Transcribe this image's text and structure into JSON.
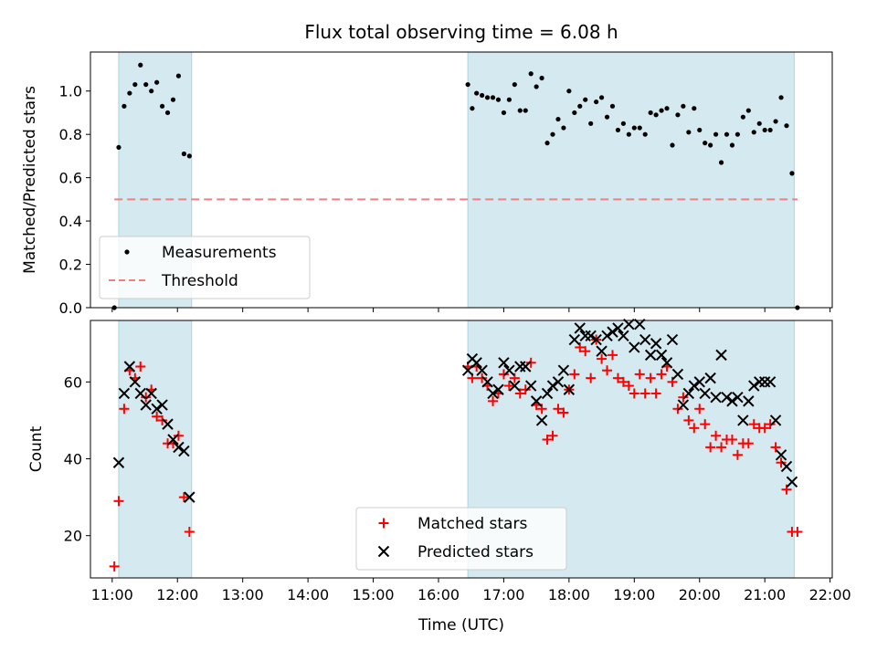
{
  "figure": {
    "title": "Flux total observing time = 6.08 h",
    "xlabel": "Time (UTC)"
  },
  "chart_data": [
    {
      "type": "scatter",
      "panel": "top",
      "ylabel": "Matched/Predicted stars",
      "xlim": [
        "10:40",
        "22:02"
      ],
      "ylim": [
        0,
        1.18
      ],
      "yticks": [
        0.0,
        0.2,
        0.4,
        0.6,
        0.8,
        1.0
      ],
      "ytick_labels": [
        "0.0",
        "0.2",
        "0.4",
        "0.6",
        "0.8",
        "1.0"
      ],
      "xticks": [
        "11:00",
        "12:00",
        "13:00",
        "14:00",
        "15:00",
        "16:00",
        "17:00",
        "18:00",
        "19:00",
        "20:00",
        "21:00",
        "22:00"
      ],
      "shaded_intervals": [
        [
          "11:06",
          "12:13"
        ],
        [
          "16:27",
          "21:27"
        ]
      ],
      "shade_color": "#d4eaf0",
      "threshold": 0.5,
      "threshold_color": "#f08080",
      "legend": {
        "placement": "lower-left",
        "entries": [
          {
            "label": "Measurements",
            "marker": "dot",
            "color": "#000000"
          },
          {
            "label": "Threshold",
            "marker": "dashed-line",
            "color": "#f08080"
          }
        ]
      },
      "series": [
        {
          "name": "Measurements",
          "color": "#000000",
          "points": [
            [
              "11:02",
              0.0
            ],
            [
              "11:06",
              0.74
            ],
            [
              "11:11",
              0.93
            ],
            [
              "11:16",
              0.99
            ],
            [
              "11:21",
              1.03
            ],
            [
              "11:26",
              1.12
            ],
            [
              "11:31",
              1.03
            ],
            [
              "11:36",
              1.0
            ],
            [
              "11:41",
              1.04
            ],
            [
              "11:46",
              0.93
            ],
            [
              "11:51",
              0.9
            ],
            [
              "11:56",
              0.96
            ],
            [
              "12:01",
              1.07
            ],
            [
              "12:06",
              0.71
            ],
            [
              "12:11",
              0.7
            ],
            [
              "16:27",
              1.03
            ],
            [
              "16:31",
              0.92
            ],
            [
              "16:35",
              0.99
            ],
            [
              "16:40",
              0.98
            ],
            [
              "16:45",
              0.97
            ],
            [
              "16:50",
              0.97
            ],
            [
              "16:55",
              0.96
            ],
            [
              "17:00",
              0.9
            ],
            [
              "17:05",
              0.96
            ],
            [
              "17:10",
              1.03
            ],
            [
              "17:15",
              0.91
            ],
            [
              "17:20",
              0.91
            ],
            [
              "17:25",
              1.08
            ],
            [
              "17:30",
              1.02
            ],
            [
              "17:35",
              1.06
            ],
            [
              "17:40",
              0.76
            ],
            [
              "17:45",
              0.8
            ],
            [
              "17:50",
              0.87
            ],
            [
              "17:55",
              0.83
            ],
            [
              "18:00",
              1.0
            ],
            [
              "18:05",
              0.9
            ],
            [
              "18:10",
              0.93
            ],
            [
              "18:15",
              0.96
            ],
            [
              "18:20",
              0.85
            ],
            [
              "18:25",
              0.95
            ],
            [
              "18:30",
              0.97
            ],
            [
              "18:35",
              0.88
            ],
            [
              "18:40",
              0.93
            ],
            [
              "18:45",
              0.82
            ],
            [
              "18:50",
              0.85
            ],
            [
              "18:55",
              0.8
            ],
            [
              "19:00",
              0.83
            ],
            [
              "19:05",
              0.83
            ],
            [
              "19:10",
              0.8
            ],
            [
              "19:15",
              0.9
            ],
            [
              "19:20",
              0.89
            ],
            [
              "19:25",
              0.91
            ],
            [
              "19:30",
              0.92
            ],
            [
              "19:35",
              0.75
            ],
            [
              "19:40",
              0.89
            ],
            [
              "19:45",
              0.93
            ],
            [
              "19:50",
              0.81
            ],
            [
              "19:55",
              0.92
            ],
            [
              "20:00",
              0.82
            ],
            [
              "20:05",
              0.76
            ],
            [
              "20:10",
              0.75
            ],
            [
              "20:15",
              0.8
            ],
            [
              "20:20",
              0.67
            ],
            [
              "20:25",
              0.8
            ],
            [
              "20:30",
              0.75
            ],
            [
              "20:35",
              0.8
            ],
            [
              "20:40",
              0.88
            ],
            [
              "20:45",
              0.91
            ],
            [
              "20:50",
              0.81
            ],
            [
              "20:55",
              0.85
            ],
            [
              "21:00",
              0.82
            ],
            [
              "21:05",
              0.82
            ],
            [
              "21:10",
              0.86
            ],
            [
              "21:15",
              0.97
            ],
            [
              "21:20",
              0.84
            ],
            [
              "21:25",
              0.62
            ],
            [
              "21:30",
              0.0
            ]
          ]
        }
      ]
    },
    {
      "type": "scatter",
      "panel": "bottom",
      "ylabel": "Count",
      "xlim": [
        "10:40",
        "22:02"
      ],
      "ylim": [
        9,
        76
      ],
      "yticks": [
        20,
        40,
        60
      ],
      "ytick_labels": [
        "20",
        "40",
        "60"
      ],
      "xticks": [
        "11:00",
        "12:00",
        "13:00",
        "14:00",
        "15:00",
        "16:00",
        "17:00",
        "18:00",
        "19:00",
        "20:00",
        "21:00",
        "22:00"
      ],
      "xtick_labels": [
        "11:00",
        "12:00",
        "13:00",
        "14:00",
        "15:00",
        "16:00",
        "17:00",
        "18:00",
        "19:00",
        "20:00",
        "21:00",
        "22:00"
      ],
      "shaded_intervals": [
        [
          "11:06",
          "12:13"
        ],
        [
          "16:27",
          "21:27"
        ]
      ],
      "shade_color": "#d4eaf0",
      "legend": {
        "placement": "lower-center",
        "entries": [
          {
            "label": "Matched stars",
            "marker": "plus",
            "color": "#ff0000"
          },
          {
            "label": "Predicted stars",
            "marker": "x",
            "color": "#000000"
          }
        ]
      },
      "series": [
        {
          "name": "Matched stars",
          "marker": "plus",
          "color": "#ff0000",
          "points": [
            [
              "11:02",
              12
            ],
            [
              "11:06",
              29
            ],
            [
              "11:11",
              53
            ],
            [
              "11:16",
              63
            ],
            [
              "11:21",
              61
            ],
            [
              "11:26",
              64
            ],
            [
              "11:31",
              56
            ],
            [
              "11:36",
              58
            ],
            [
              "11:41",
              51
            ],
            [
              "11:46",
              50
            ],
            [
              "11:51",
              44
            ],
            [
              "11:56",
              44
            ],
            [
              "12:01",
              46
            ],
            [
              "12:06",
              30
            ],
            [
              "12:11",
              21
            ],
            [
              "16:27",
              64
            ],
            [
              "16:31",
              61
            ],
            [
              "16:35",
              64
            ],
            [
              "16:40",
              61
            ],
            [
              "16:45",
              59
            ],
            [
              "16:50",
              55
            ],
            [
              "16:55",
              57
            ],
            [
              "17:00",
              62
            ],
            [
              "17:05",
              59
            ],
            [
              "17:10",
              61
            ],
            [
              "17:15",
              57
            ],
            [
              "17:20",
              58
            ],
            [
              "17:25",
              65
            ],
            [
              "17:30",
              54
            ],
            [
              "17:35",
              53
            ],
            [
              "17:40",
              45
            ],
            [
              "17:45",
              46
            ],
            [
              "17:50",
              53
            ],
            [
              "17:55",
              52
            ],
            [
              "18:00",
              58
            ],
            [
              "18:05",
              62
            ],
            [
              "18:10",
              69
            ],
            [
              "18:15",
              68
            ],
            [
              "18:20",
              61
            ],
            [
              "18:25",
              71
            ],
            [
              "18:30",
              66
            ],
            [
              "18:35",
              63
            ],
            [
              "18:40",
              67
            ],
            [
              "18:45",
              61
            ],
            [
              "18:50",
              60
            ],
            [
              "18:55",
              59
            ],
            [
              "19:00",
              57
            ],
            [
              "19:05",
              62
            ],
            [
              "19:10",
              57
            ],
            [
              "19:15",
              61
            ],
            [
              "19:20",
              57
            ],
            [
              "19:25",
              62
            ],
            [
              "19:30",
              64
            ],
            [
              "19:35",
              60
            ],
            [
              "19:40",
              53
            ],
            [
              "19:45",
              56
            ],
            [
              "19:50",
              50
            ],
            [
              "19:55",
              48
            ],
            [
              "20:00",
              53
            ],
            [
              "20:05",
              49
            ],
            [
              "20:10",
              43
            ],
            [
              "20:15",
              46
            ],
            [
              "20:20",
              43
            ],
            [
              "20:25",
              45
            ],
            [
              "20:30",
              45
            ],
            [
              "20:35",
              41
            ],
            [
              "20:40",
              44
            ],
            [
              "20:45",
              44
            ],
            [
              "20:50",
              49
            ],
            [
              "20:55",
              48
            ],
            [
              "21:00",
              48
            ],
            [
              "21:05",
              49
            ],
            [
              "21:10",
              43
            ],
            [
              "21:15",
              39
            ],
            [
              "21:20",
              32
            ],
            [
              "21:25",
              21
            ],
            [
              "21:30",
              21
            ]
          ]
        },
        {
          "name": "Predicted stars",
          "marker": "x",
          "color": "#000000",
          "points": [
            [
              "11:06",
              39
            ],
            [
              "11:11",
              57
            ],
            [
              "11:16",
              64
            ],
            [
              "11:21",
              60
            ],
            [
              "11:26",
              57
            ],
            [
              "11:31",
              54
            ],
            [
              "11:36",
              57
            ],
            [
              "11:41",
              53
            ],
            [
              "11:46",
              54
            ],
            [
              "11:51",
              49
            ],
            [
              "11:56",
              45
            ],
            [
              "12:01",
              43
            ],
            [
              "12:06",
              42
            ],
            [
              "12:11",
              30
            ],
            [
              "16:27",
              63
            ],
            [
              "16:31",
              66
            ],
            [
              "16:35",
              65
            ],
            [
              "16:40",
              63
            ],
            [
              "16:45",
              60
            ],
            [
              "16:50",
              57
            ],
            [
              "16:55",
              58
            ],
            [
              "17:00",
              65
            ],
            [
              "17:05",
              63
            ],
            [
              "17:10",
              59
            ],
            [
              "17:15",
              64
            ],
            [
              "17:20",
              64
            ],
            [
              "17:25",
              59
            ],
            [
              "17:30",
              55
            ],
            [
              "17:35",
              50
            ],
            [
              "17:40",
              57
            ],
            [
              "17:45",
              59
            ],
            [
              "17:50",
              60
            ],
            [
              "17:55",
              63
            ],
            [
              "18:00",
              58
            ],
            [
              "18:05",
              71
            ],
            [
              "18:10",
              74
            ],
            [
              "18:15",
              72
            ],
            [
              "18:20",
              72
            ],
            [
              "18:25",
              71
            ],
            [
              "18:30",
              68
            ],
            [
              "18:35",
              72
            ],
            [
              "18:40",
              73
            ],
            [
              "18:45",
              74
            ],
            [
              "18:50",
              72
            ],
            [
              "18:55",
              75
            ],
            [
              "19:00",
              69
            ],
            [
              "19:05",
              75
            ],
            [
              "19:10",
              71
            ],
            [
              "19:15",
              67
            ],
            [
              "19:20",
              70
            ],
            [
              "19:25",
              67
            ],
            [
              "19:30",
              65
            ],
            [
              "19:35",
              71
            ],
            [
              "19:40",
              62
            ],
            [
              "19:45",
              54
            ],
            [
              "19:50",
              57
            ],
            [
              "19:55",
              59
            ],
            [
              "20:00",
              60
            ],
            [
              "20:05",
              57
            ],
            [
              "20:10",
              61
            ],
            [
              "20:15",
              56
            ],
            [
              "20:20",
              67
            ],
            [
              "20:25",
              56
            ],
            [
              "20:30",
              55
            ],
            [
              "20:35",
              56
            ],
            [
              "20:40",
              50
            ],
            [
              "20:45",
              55
            ],
            [
              "20:50",
              59
            ],
            [
              "20:55",
              60
            ],
            [
              "21:00",
              60
            ],
            [
              "21:05",
              60
            ],
            [
              "21:10",
              50
            ],
            [
              "21:15",
              41
            ],
            [
              "21:20",
              38
            ],
            [
              "21:25",
              34
            ]
          ]
        }
      ]
    }
  ]
}
